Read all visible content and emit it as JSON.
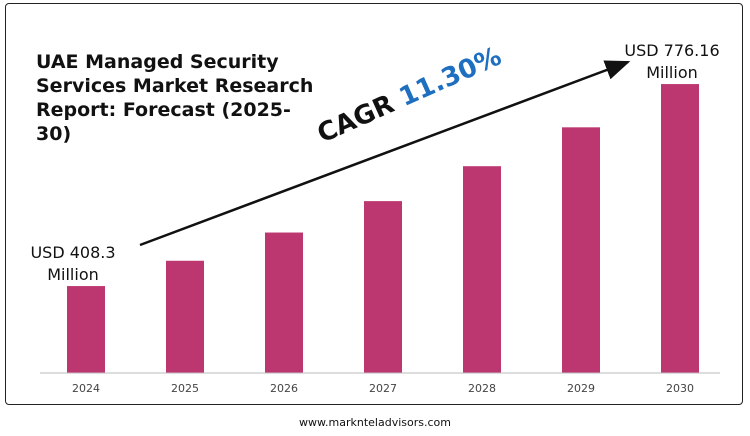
{
  "title": "UAE Managed Security Services Market Research Report: Forecast (2025-30)",
  "start_label": [
    "USD 408.3",
    "Million"
  ],
  "end_label": [
    "USD 776.16",
    "Million"
  ],
  "cagr_prefix": "CAGR",
  "cagr_value": "11.30%",
  "footer": "www.marknteladvisors.com",
  "bar_color": "#bc3670",
  "chart_data": {
    "type": "bar",
    "categories": [
      "2024",
      "2025",
      "2026",
      "2027",
      "2028",
      "2029",
      "2030"
    ],
    "values": [
      408.3,
      454.4,
      505.8,
      563.0,
      626.6,
      697.4,
      776.16
    ],
    "ylim": [
      250,
      820
    ]
  }
}
